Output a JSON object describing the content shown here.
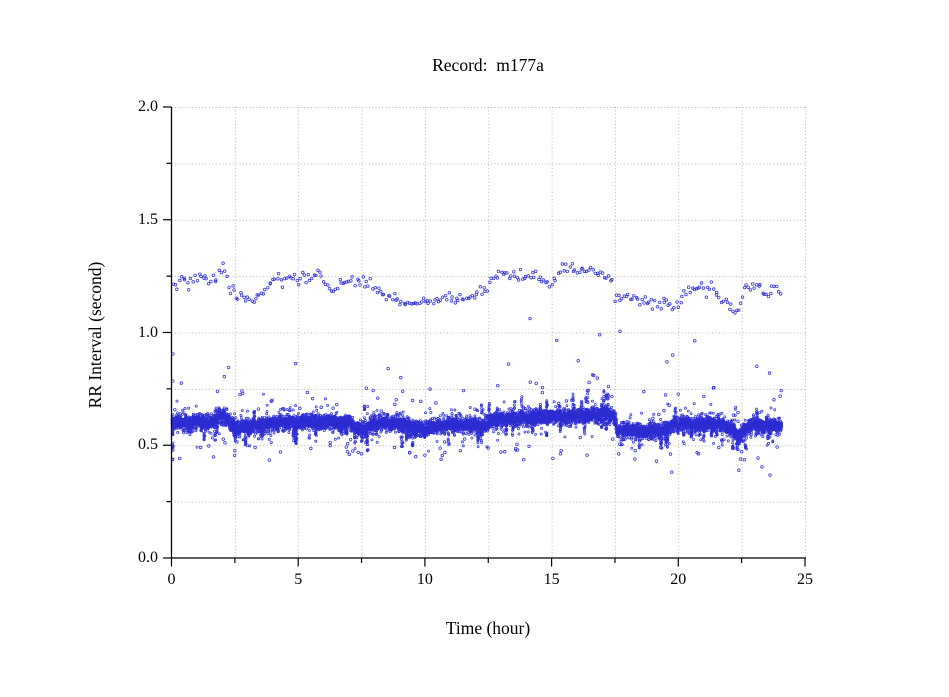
{
  "chart_data": {
    "type": "scatter",
    "title": "Record:  m177a",
    "xlabel": "Time (hour)",
    "ylabel": "RR Interval (second)",
    "xlim": [
      0,
      25
    ],
    "ylim": [
      0.0,
      2.0
    ],
    "x_major_ticks": [
      0,
      5,
      10,
      15,
      20,
      25
    ],
    "x_tick_labels": [
      "0",
      "5",
      "10",
      "15",
      "20",
      "25"
    ],
    "x_minor_step": 2.5,
    "y_major_ticks": [
      0.0,
      0.5,
      1.0,
      1.5,
      2.0
    ],
    "y_tick_labels": [
      "0.0",
      "0.5",
      "1.0",
      "1.5",
      "2.0"
    ],
    "y_minor_step": 0.25,
    "grid": {
      "show": true,
      "style": "dotted",
      "color": "#b3b3b3",
      "x_step": 2.5,
      "y_step": 0.25
    },
    "style": {
      "axis_color": "#000000",
      "background": "#ffffff"
    },
    "marker": {
      "shape": "open-circle",
      "color": "#2d2dd2",
      "alpha": 0.92,
      "radius_main": 1.05,
      "radius_sparse": 1.3,
      "stroke_width": 0.8
    },
    "seed": 20177,
    "series": {
      "main_band": {
        "description": "dense normal-beat RR band",
        "density_per_hour": 330,
        "sigma": 0.0155,
        "t_range": [
          0.02,
          24.08
        ],
        "wiggle": [
          [
            37.0,
            0.0045
          ],
          [
            13.7,
            0.003
          ]
        ],
        "center": [
          [
            0.0,
            0.6
          ],
          [
            0.3,
            0.6
          ],
          [
            0.6,
            0.596
          ],
          [
            0.9,
            0.601
          ],
          [
            1.2,
            0.604
          ],
          [
            1.5,
            0.6
          ],
          [
            1.8,
            0.624
          ],
          [
            2.0,
            0.63
          ],
          [
            2.2,
            0.624
          ],
          [
            2.35,
            0.586
          ],
          [
            2.6,
            0.58
          ],
          [
            3.0,
            0.585
          ],
          [
            3.4,
            0.585
          ],
          [
            3.8,
            0.59
          ],
          [
            4.2,
            0.6
          ],
          [
            4.6,
            0.604
          ],
          [
            5.0,
            0.6
          ],
          [
            5.4,
            0.614
          ],
          [
            5.8,
            0.6
          ],
          [
            6.2,
            0.604
          ],
          [
            6.6,
            0.596
          ],
          [
            7.0,
            0.604
          ],
          [
            7.35,
            0.572
          ],
          [
            7.7,
            0.576
          ],
          [
            8.0,
            0.594
          ],
          [
            8.5,
            0.6
          ],
          [
            9.0,
            0.595
          ],
          [
            9.6,
            0.576
          ],
          [
            10.0,
            0.572
          ],
          [
            10.4,
            0.584
          ],
          [
            10.9,
            0.59
          ],
          [
            11.4,
            0.592
          ],
          [
            11.9,
            0.588
          ],
          [
            12.4,
            0.59
          ],
          [
            12.75,
            0.612
          ],
          [
            13.3,
            0.617
          ],
          [
            13.8,
            0.62
          ],
          [
            14.3,
            0.625
          ],
          [
            14.8,
            0.622
          ],
          [
            15.3,
            0.628
          ],
          [
            15.8,
            0.624
          ],
          [
            16.3,
            0.63
          ],
          [
            16.8,
            0.634
          ],
          [
            17.2,
            0.638
          ],
          [
            17.45,
            0.63
          ],
          [
            17.6,
            0.56
          ],
          [
            17.9,
            0.566
          ],
          [
            18.2,
            0.57
          ],
          [
            18.6,
            0.56
          ],
          [
            19.0,
            0.57
          ],
          [
            19.4,
            0.564
          ],
          [
            19.8,
            0.588
          ],
          [
            20.2,
            0.6
          ],
          [
            20.6,
            0.585
          ],
          [
            21.0,
            0.598
          ],
          [
            21.4,
            0.594
          ],
          [
            21.8,
            0.59
          ],
          [
            22.15,
            0.566
          ],
          [
            22.4,
            0.536
          ],
          [
            22.65,
            0.576
          ],
          [
            23.0,
            0.59
          ],
          [
            23.4,
            0.588
          ],
          [
            23.8,
            0.59
          ],
          [
            24.05,
            0.582
          ]
        ]
      },
      "upper_band": {
        "description": "long RR (blocked/doubled interval) band",
        "density_per_hour": 13,
        "sigma": 0.012,
        "t_range": [
          0.05,
          24.05
        ],
        "center": [
          [
            0.05,
            1.205
          ],
          [
            0.3,
            1.23
          ],
          [
            0.7,
            1.22
          ],
          [
            1.0,
            1.245
          ],
          [
            1.3,
            1.238
          ],
          [
            1.6,
            1.224
          ],
          [
            1.9,
            1.275
          ],
          [
            2.1,
            1.29
          ],
          [
            2.3,
            1.19
          ],
          [
            2.6,
            1.16
          ],
          [
            3.0,
            1.155
          ],
          [
            3.4,
            1.155
          ],
          [
            3.7,
            1.19
          ],
          [
            4.1,
            1.23
          ],
          [
            4.4,
            1.245
          ],
          [
            4.8,
            1.24
          ],
          [
            5.0,
            1.212
          ],
          [
            5.2,
            1.26
          ],
          [
            5.5,
            1.24
          ],
          [
            5.85,
            1.27
          ],
          [
            6.1,
            1.202
          ],
          [
            6.4,
            1.196
          ],
          [
            6.8,
            1.22
          ],
          [
            7.05,
            1.255
          ],
          [
            7.3,
            1.234
          ],
          [
            7.6,
            1.22
          ],
          [
            7.9,
            1.21
          ],
          [
            8.2,
            1.176
          ],
          [
            8.5,
            1.164
          ],
          [
            8.9,
            1.145
          ],
          [
            9.2,
            1.136
          ],
          [
            9.55,
            1.12
          ],
          [
            9.9,
            1.136
          ],
          [
            10.3,
            1.15
          ],
          [
            10.7,
            1.144
          ],
          [
            11.1,
            1.156
          ],
          [
            11.5,
            1.15
          ],
          [
            11.9,
            1.165
          ],
          [
            12.3,
            1.175
          ],
          [
            12.6,
            1.23
          ],
          [
            12.85,
            1.26
          ],
          [
            13.1,
            1.25
          ],
          [
            13.5,
            1.246
          ],
          [
            14.0,
            1.255
          ],
          [
            14.4,
            1.24
          ],
          [
            14.8,
            1.226
          ],
          [
            15.0,
            1.212
          ],
          [
            15.25,
            1.26
          ],
          [
            15.6,
            1.285
          ],
          [
            16.0,
            1.27
          ],
          [
            16.4,
            1.283
          ],
          [
            16.8,
            1.26
          ],
          [
            17.1,
            1.256
          ],
          [
            17.35,
            1.25
          ],
          [
            17.55,
            1.16
          ],
          [
            17.75,
            1.146
          ],
          [
            18.0,
            1.165
          ],
          [
            18.25,
            1.15
          ],
          [
            18.5,
            1.13
          ],
          [
            18.75,
            1.145
          ],
          [
            19.0,
            1.12
          ],
          [
            19.3,
            1.13
          ],
          [
            19.55,
            1.136
          ],
          [
            19.8,
            1.115
          ],
          [
            20.05,
            1.12
          ],
          [
            20.35,
            1.196
          ],
          [
            20.6,
            1.21
          ],
          [
            20.8,
            1.196
          ],
          [
            21.0,
            1.215
          ],
          [
            21.2,
            1.2
          ],
          [
            21.45,
            1.188
          ],
          [
            21.65,
            1.142
          ],
          [
            21.85,
            1.15
          ],
          [
            22.05,
            1.115
          ],
          [
            22.2,
            1.092
          ],
          [
            22.35,
            1.08
          ],
          [
            22.55,
            1.185
          ],
          [
            22.8,
            1.2
          ],
          [
            23.0,
            1.196
          ],
          [
            23.2,
            1.188
          ],
          [
            23.45,
            1.164
          ],
          [
            23.6,
            1.16
          ],
          [
            23.8,
            1.196
          ],
          [
            24.0,
            1.19
          ]
        ]
      },
      "above_scatter": {
        "count": 62,
        "offset": [
          0.05,
          0.185
        ]
      },
      "below_scatter": {
        "count": 40,
        "offset": [
          0.05,
          0.165
        ]
      },
      "whiskers_down": {
        "count": 64,
        "depth": [
          0.04,
          0.105
        ],
        "points": [
          8,
          14
        ]
      },
      "whiskers_up": {
        "count": 24,
        "height": [
          0.05,
          0.125
        ],
        "points": [
          6,
          10
        ],
        "favored_range": [
          12.8,
          17.45
        ],
        "favored_prob": 0.55
      },
      "start_spike": {
        "t": 0.045,
        "v_range": [
          0.435,
          0.618
        ],
        "count": 22
      },
      "mid_outliers": [
        [
          0.05,
          0.905
        ],
        [
          2.25,
          0.845
        ],
        [
          4.9,
          0.862
        ],
        [
          8.55,
          0.84
        ],
        [
          9.05,
          0.8
        ],
        [
          13.3,
          0.86
        ],
        [
          14.15,
          1.062
        ],
        [
          15.2,
          0.965
        ],
        [
          16.05,
          0.875
        ],
        [
          16.9,
          0.99
        ],
        [
          17.7,
          1.005
        ],
        [
          19.55,
          0.87
        ],
        [
          19.78,
          0.9
        ],
        [
          20.65,
          0.963
        ],
        [
          23.1,
          0.85
        ],
        [
          23.6,
          0.82
        ]
      ],
      "low_outliers": [
        [
          0.04,
          0.438
        ],
        [
          1.15,
          0.49
        ],
        [
          2.5,
          0.476
        ],
        [
          3.3,
          0.49
        ],
        [
          4.3,
          0.47
        ],
        [
          5.5,
          0.486
        ],
        [
          6.9,
          0.492
        ],
        [
          7.5,
          0.462
        ],
        [
          8.8,
          0.49
        ],
        [
          9.4,
          0.468
        ],
        [
          10.0,
          0.456
        ],
        [
          10.6,
          0.487
        ],
        [
          11.4,
          0.476
        ],
        [
          12.5,
          0.488
        ],
        [
          13.0,
          0.47
        ],
        [
          13.9,
          0.436
        ],
        [
          15.05,
          0.442
        ],
        [
          15.35,
          0.462
        ],
        [
          16.4,
          0.456
        ],
        [
          17.65,
          0.462
        ],
        [
          18.3,
          0.476
        ],
        [
          19.3,
          0.49
        ],
        [
          19.74,
          0.381
        ],
        [
          20.8,
          0.462
        ],
        [
          21.6,
          0.49
        ],
        [
          22.5,
          0.472
        ],
        [
          23.3,
          0.404
        ],
        [
          23.62,
          0.368
        ],
        [
          23.9,
          0.492
        ]
      ]
    }
  }
}
